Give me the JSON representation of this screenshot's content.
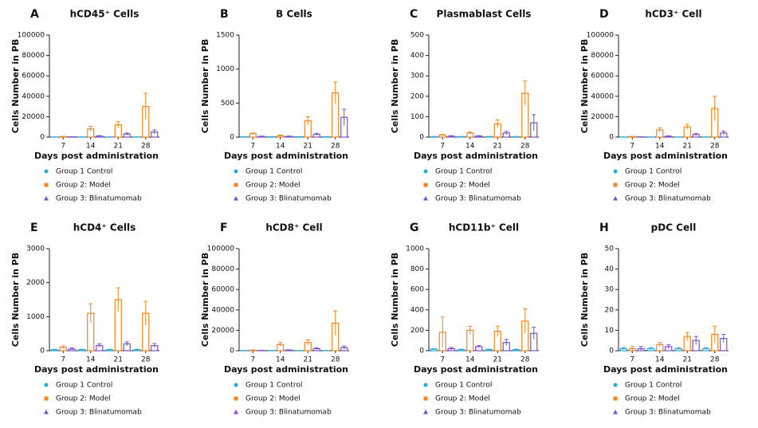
{
  "chart_data": [
    {
      "type": "bar",
      "panel": "A",
      "title": "hCD45⁺ Cells",
      "ylabel": "Cells Number in PB",
      "xlabel": "Days post administration",
      "categories": [
        "7",
        "14",
        "21",
        "28"
      ],
      "ylim": [
        0,
        100000
      ],
      "yticks": [
        0,
        20000,
        40000,
        60000,
        80000,
        100000
      ],
      "series": [
        {
          "name": "Group 1 Control",
          "color": "#29a8e0",
          "marker": "circle",
          "values": [
            100,
            100,
            100,
            100
          ],
          "errors": [
            50,
            50,
            50,
            50
          ]
        },
        {
          "name": "Group 2: Model",
          "color": "#f5861f",
          "marker": "square",
          "values": [
            500,
            8000,
            12000,
            30000
          ],
          "errors": [
            200,
            2500,
            3000,
            13000
          ]
        },
        {
          "name": "Group 3: Blinatumomab",
          "color": "#7b4fd6",
          "marker": "triangle",
          "values": [
            300,
            1000,
            3000,
            5000
          ],
          "errors": [
            100,
            500,
            1000,
            2000
          ]
        }
      ]
    },
    {
      "type": "bar",
      "panel": "B",
      "title": "B Cells",
      "ylabel": "Cells Number in PB",
      "xlabel": "Days post administration",
      "categories": [
        "7",
        "14",
        "21",
        "28"
      ],
      "ylim": [
        0,
        1500
      ],
      "yticks": [
        0,
        500,
        1000,
        1500
      ],
      "series": [
        {
          "name": "Group 1 Control",
          "color": "#29a8e0",
          "marker": "circle",
          "values": [
            5,
            5,
            5,
            5
          ],
          "errors": [
            2,
            2,
            2,
            2
          ]
        },
        {
          "name": "Group 2: Model",
          "color": "#f5861f",
          "marker": "square",
          "values": [
            50,
            20,
            240,
            650
          ],
          "errors": [
            10,
            10,
            60,
            160
          ]
        },
        {
          "name": "Group 3: Blinatumomab",
          "color": "#7b4fd6",
          "marker": "triangle",
          "values": [
            10,
            10,
            40,
            290
          ],
          "errors": [
            5,
            5,
            15,
            120
          ]
        }
      ]
    },
    {
      "type": "bar",
      "panel": "C",
      "title": "Plasmablast Cells",
      "ylabel": "Cells Number in PB",
      "xlabel": "Days post administration",
      "categories": [
        "7",
        "14",
        "21",
        "28"
      ],
      "ylim": [
        0,
        500
      ],
      "yticks": [
        0,
        100,
        200,
        300,
        400,
        500
      ],
      "series": [
        {
          "name": "Group 1 Control",
          "color": "#29a8e0",
          "marker": "circle",
          "values": [
            2,
            2,
            2,
            2
          ],
          "errors": [
            1,
            1,
            1,
            1
          ]
        },
        {
          "name": "Group 2: Model",
          "color": "#f5861f",
          "marker": "square",
          "values": [
            10,
            20,
            65,
            215
          ],
          "errors": [
            3,
            5,
            20,
            60
          ]
        },
        {
          "name": "Group 3: Blinatumomab",
          "color": "#7b4fd6",
          "marker": "triangle",
          "values": [
            5,
            5,
            20,
            70
          ],
          "errors": [
            2,
            2,
            8,
            40
          ]
        }
      ]
    },
    {
      "type": "bar",
      "panel": "D",
      "title": "hCD3⁺ Cell",
      "ylabel": "Cells Number in PB",
      "xlabel": "Days post administration",
      "categories": [
        "7",
        "14",
        "21",
        "28"
      ],
      "ylim": [
        0,
        100000
      ],
      "yticks": [
        0,
        20000,
        40000,
        60000,
        80000,
        100000
      ],
      "series": [
        {
          "name": "Group 1 Control",
          "color": "#29a8e0",
          "marker": "circle",
          "values": [
            100,
            100,
            100,
            100
          ],
          "errors": [
            50,
            50,
            50,
            50
          ]
        },
        {
          "name": "Group 2: Model",
          "color": "#f5861f",
          "marker": "square",
          "values": [
            500,
            7000,
            10000,
            28000
          ],
          "errors": [
            200,
            2000,
            2500,
            12000
          ]
        },
        {
          "name": "Group 3: Blinatumomab",
          "color": "#7b4fd6",
          "marker": "triangle",
          "values": [
            200,
            800,
            2500,
            4000
          ],
          "errors": [
            100,
            400,
            1000,
            2000
          ]
        }
      ]
    },
    {
      "type": "bar",
      "panel": "E",
      "title": "hCD4⁺ Cells",
      "ylabel": "Cells Number in PB",
      "xlabel": "Days post administration",
      "categories": [
        "7",
        "14",
        "21",
        "28"
      ],
      "ylim": [
        0,
        3000
      ],
      "yticks": [
        0,
        1000,
        2000,
        3000
      ],
      "series": [
        {
          "name": "Group 1 Control",
          "color": "#29a8e0",
          "marker": "circle",
          "values": [
            30,
            30,
            30,
            30
          ],
          "errors": [
            10,
            10,
            10,
            10
          ]
        },
        {
          "name": "Group 2: Model",
          "color": "#f5861f",
          "marker": "square",
          "values": [
            100,
            1100,
            1500,
            1100
          ],
          "errors": [
            40,
            280,
            350,
            350
          ]
        },
        {
          "name": "Group 3: Blinatumomab",
          "color": "#7b4fd6",
          "marker": "triangle",
          "values": [
            50,
            150,
            200,
            150
          ],
          "errors": [
            30,
            50,
            60,
            60
          ]
        }
      ]
    },
    {
      "type": "bar",
      "panel": "F",
      "title": "hCD8⁺ Cell",
      "ylabel": "Cells Number in PB",
      "xlabel": "Days post administration",
      "categories": [
        "7",
        "14",
        "21",
        "28"
      ],
      "ylim": [
        0,
        100000
      ],
      "yticks": [
        0,
        20000,
        40000,
        60000,
        80000,
        100000
      ],
      "series": [
        {
          "name": "Group 1 Control",
          "color": "#29a8e0",
          "marker": "circle",
          "values": [
            100,
            100,
            100,
            100
          ],
          "errors": [
            50,
            50,
            50,
            50
          ]
        },
        {
          "name": "Group 2: Model",
          "color": "#f5861f",
          "marker": "square",
          "values": [
            500,
            6000,
            8000,
            27000
          ],
          "errors": [
            200,
            2000,
            2500,
            12000
          ]
        },
        {
          "name": "Group 3: Blinatumomab",
          "color": "#7b4fd6",
          "marker": "triangle",
          "values": [
            200,
            600,
            2000,
            3000
          ],
          "errors": [
            100,
            300,
            800,
            1500
          ]
        }
      ]
    },
    {
      "type": "bar",
      "panel": "G",
      "title": "hCD11b⁺ Cell",
      "ylabel": "Cells Number in PB",
      "xlabel": "Days post administration",
      "categories": [
        "7",
        "14",
        "21",
        "28"
      ],
      "ylim": [
        0,
        1000
      ],
      "yticks": [
        0,
        200,
        400,
        600,
        800,
        1000
      ],
      "series": [
        {
          "name": "Group 1 Control",
          "color": "#29a8e0",
          "marker": "circle",
          "values": [
            15,
            10,
            10,
            10
          ],
          "errors": [
            5,
            5,
            5,
            5
          ]
        },
        {
          "name": "Group 2: Model",
          "color": "#f5861f",
          "marker": "square",
          "values": [
            180,
            200,
            190,
            290
          ],
          "errors": [
            150,
            40,
            50,
            120
          ]
        },
        {
          "name": "Group 3: Blinatumomab",
          "color": "#7b4fd6",
          "marker": "triangle",
          "values": [
            20,
            40,
            80,
            170
          ],
          "errors": [
            10,
            10,
            30,
            60
          ]
        }
      ]
    },
    {
      "type": "bar",
      "panel": "H",
      "title": "pDC Cell",
      "ylabel": "Cells Number in PB",
      "xlabel": "Days post administration",
      "categories": [
        "7",
        "14",
        "21",
        "28"
      ],
      "ylim": [
        0,
        50
      ],
      "yticks": [
        0,
        10,
        20,
        30,
        40,
        50
      ],
      "series": [
        {
          "name": "Group 1 Control",
          "color": "#29a8e0",
          "marker": "circle",
          "values": [
            1,
            1,
            1,
            1
          ],
          "errors": [
            0.5,
            0.5,
            0.5,
            0.5
          ]
        },
        {
          "name": "Group 2: Model",
          "color": "#f5861f",
          "marker": "square",
          "values": [
            1,
            3,
            7,
            8
          ],
          "errors": [
            1,
            1,
            2,
            4
          ]
        },
        {
          "name": "Group 3: Blinatumomab",
          "color": "#7b4fd6",
          "marker": "triangle",
          "values": [
            1,
            2,
            5,
            6
          ],
          "errors": [
            1,
            1,
            2,
            2
          ]
        }
      ]
    }
  ]
}
